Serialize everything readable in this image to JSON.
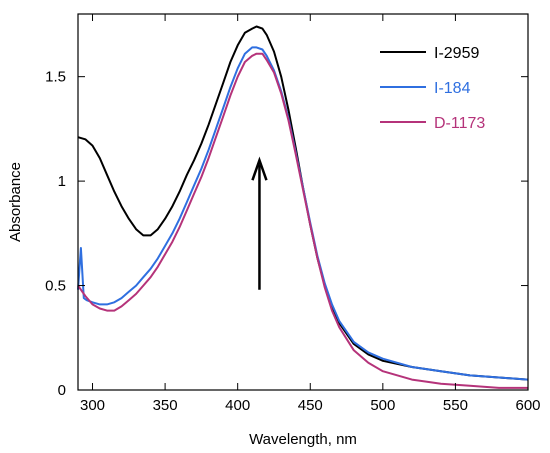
{
  "chart_data": {
    "type": "line",
    "title": "",
    "xlabel": "Wavelength, nm",
    "ylabel": "Absorbance",
    "xlim": [
      290,
      600
    ],
    "ylim": [
      0,
      1.8
    ],
    "x_ticks": [
      300,
      350,
      400,
      450,
      500,
      550,
      600
    ],
    "x_tick_labels": [
      "300",
      "350",
      "400",
      "450",
      "500",
      "550",
      "600"
    ],
    "y_ticks": [
      0,
      0.5,
      1,
      1.5
    ],
    "y_tick_labels": [
      "0",
      "0.5",
      "1",
      "1.5"
    ],
    "grid": false,
    "legend_position": "top-right",
    "annotation": "upward arrow at ~415 nm",
    "arrow": {
      "x": 415,
      "y_from": 0.48,
      "y_to": 1.1
    },
    "series": [
      {
        "name": "I-2959",
        "color": "#000000",
        "points": [
          [
            290,
            1.21
          ],
          [
            295,
            1.2
          ],
          [
            300,
            1.17
          ],
          [
            305,
            1.11
          ],
          [
            310,
            1.03
          ],
          [
            315,
            0.95
          ],
          [
            320,
            0.88
          ],
          [
            325,
            0.82
          ],
          [
            330,
            0.77
          ],
          [
            335,
            0.74
          ],
          [
            340,
            0.74
          ],
          [
            345,
            0.77
          ],
          [
            350,
            0.82
          ],
          [
            355,
            0.88
          ],
          [
            360,
            0.95
          ],
          [
            365,
            1.03
          ],
          [
            370,
            1.1
          ],
          [
            375,
            1.18
          ],
          [
            380,
            1.27
          ],
          [
            385,
            1.37
          ],
          [
            390,
            1.47
          ],
          [
            395,
            1.57
          ],
          [
            400,
            1.65
          ],
          [
            405,
            1.71
          ],
          [
            410,
            1.73
          ],
          [
            413,
            1.74
          ],
          [
            417,
            1.73
          ],
          [
            420,
            1.7
          ],
          [
            425,
            1.62
          ],
          [
            430,
            1.5
          ],
          [
            435,
            1.34
          ],
          [
            440,
            1.16
          ],
          [
            445,
            0.97
          ],
          [
            450,
            0.79
          ],
          [
            455,
            0.63
          ],
          [
            460,
            0.5
          ],
          [
            465,
            0.4
          ],
          [
            470,
            0.32
          ],
          [
            480,
            0.22
          ],
          [
            490,
            0.17
          ],
          [
            500,
            0.14
          ],
          [
            520,
            0.11
          ],
          [
            540,
            0.09
          ],
          [
            560,
            0.07
          ],
          [
            580,
            0.06
          ],
          [
            600,
            0.05
          ]
        ]
      },
      {
        "name": "I-184",
        "color": "#2f6fe0",
        "points": [
          [
            290,
            0.48
          ],
          [
            292,
            0.68
          ],
          [
            294,
            0.44
          ],
          [
            296,
            0.43
          ],
          [
            300,
            0.42
          ],
          [
            305,
            0.41
          ],
          [
            310,
            0.41
          ],
          [
            315,
            0.42
          ],
          [
            320,
            0.44
          ],
          [
            325,
            0.47
          ],
          [
            330,
            0.5
          ],
          [
            335,
            0.54
          ],
          [
            340,
            0.58
          ],
          [
            345,
            0.63
          ],
          [
            350,
            0.69
          ],
          [
            355,
            0.75
          ],
          [
            360,
            0.82
          ],
          [
            365,
            0.9
          ],
          [
            370,
            0.98
          ],
          [
            375,
            1.06
          ],
          [
            380,
            1.15
          ],
          [
            385,
            1.25
          ],
          [
            390,
            1.35
          ],
          [
            395,
            1.45
          ],
          [
            400,
            1.54
          ],
          [
            405,
            1.61
          ],
          [
            410,
            1.64
          ],
          [
            413,
            1.64
          ],
          [
            417,
            1.63
          ],
          [
            420,
            1.6
          ],
          [
            425,
            1.53
          ],
          [
            430,
            1.43
          ],
          [
            435,
            1.3
          ],
          [
            440,
            1.14
          ],
          [
            445,
            0.97
          ],
          [
            450,
            0.8
          ],
          [
            455,
            0.64
          ],
          [
            460,
            0.51
          ],
          [
            465,
            0.41
          ],
          [
            470,
            0.33
          ],
          [
            480,
            0.23
          ],
          [
            490,
            0.18
          ],
          [
            500,
            0.15
          ],
          [
            520,
            0.11
          ],
          [
            540,
            0.09
          ],
          [
            560,
            0.07
          ],
          [
            580,
            0.06
          ],
          [
            600,
            0.05
          ]
        ]
      },
      {
        "name": "D-1173",
        "color": "#b5337a",
        "points": [
          [
            290,
            0.5
          ],
          [
            295,
            0.45
          ],
          [
            300,
            0.41
          ],
          [
            305,
            0.39
          ],
          [
            310,
            0.38
          ],
          [
            315,
            0.38
          ],
          [
            320,
            0.4
          ],
          [
            325,
            0.43
          ],
          [
            330,
            0.46
          ],
          [
            335,
            0.5
          ],
          [
            340,
            0.54
          ],
          [
            345,
            0.59
          ],
          [
            350,
            0.65
          ],
          [
            355,
            0.71
          ],
          [
            360,
            0.78
          ],
          [
            365,
            0.86
          ],
          [
            370,
            0.94
          ],
          [
            375,
            1.02
          ],
          [
            380,
            1.11
          ],
          [
            385,
            1.21
          ],
          [
            390,
            1.31
          ],
          [
            395,
            1.41
          ],
          [
            400,
            1.5
          ],
          [
            405,
            1.57
          ],
          [
            410,
            1.6
          ],
          [
            413,
            1.61
          ],
          [
            417,
            1.61
          ],
          [
            420,
            1.58
          ],
          [
            425,
            1.52
          ],
          [
            430,
            1.42
          ],
          [
            435,
            1.29
          ],
          [
            440,
            1.13
          ],
          [
            445,
            0.96
          ],
          [
            450,
            0.79
          ],
          [
            455,
            0.63
          ],
          [
            460,
            0.49
          ],
          [
            465,
            0.38
          ],
          [
            470,
            0.3
          ],
          [
            480,
            0.19
          ],
          [
            490,
            0.13
          ],
          [
            500,
            0.09
          ],
          [
            520,
            0.05
          ],
          [
            540,
            0.03
          ],
          [
            560,
            0.02
          ],
          [
            580,
            0.01
          ],
          [
            600,
            0.01
          ]
        ]
      }
    ]
  }
}
